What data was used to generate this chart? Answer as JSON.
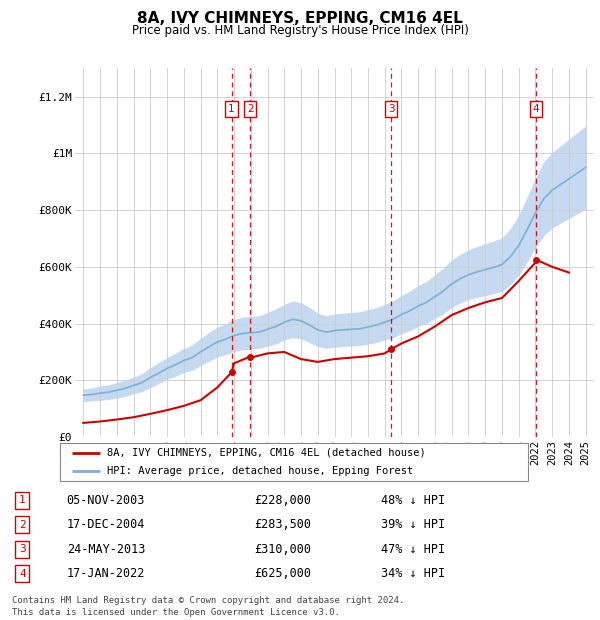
{
  "title": "8A, IVY CHIMNEYS, EPPING, CM16 4EL",
  "subtitle": "Price paid vs. HM Land Registry's House Price Index (HPI)",
  "legend_line1": "8A, IVY CHIMNEYS, EPPING, CM16 4EL (detached house)",
  "legend_line2": "HPI: Average price, detached house, Epping Forest",
  "footer1": "Contains HM Land Registry data © Crown copyright and database right 2024.",
  "footer2": "This data is licensed under the Open Government Licence v3.0.",
  "ylabel_ticks": [
    "£0",
    "£200K",
    "£400K",
    "£600K",
    "£800K",
    "£1M",
    "£1.2M"
  ],
  "ytick_values": [
    0,
    200000,
    400000,
    600000,
    800000,
    1000000,
    1200000
  ],
  "ylim": [
    0,
    1300000
  ],
  "xlim_start": 1994.5,
  "xlim_end": 2025.5,
  "hpi_color": "#c5d9f0",
  "hpi_line_color": "#7eafd4",
  "price_line_color": "#cc0000",
  "vline_color": "#cc0000",
  "transactions": [
    {
      "num": 1,
      "date": "05-NOV-2003",
      "year": 2003.85,
      "price": 228000,
      "label": "£228,000",
      "pct": "48% ↓ HPI"
    },
    {
      "num": 2,
      "date": "17-DEC-2004",
      "year": 2004.96,
      "price": 283500,
      "label": "£283,500",
      "pct": "39% ↓ HPI"
    },
    {
      "num": 3,
      "date": "24-MAY-2013",
      "year": 2013.39,
      "price": 310000,
      "label": "£310,000",
      "pct": "47% ↓ HPI"
    },
    {
      "num": 4,
      "date": "17-JAN-2022",
      "year": 2022.05,
      "price": 625000,
      "label": "£625,000",
      "pct": "34% ↓ HPI"
    }
  ],
  "hpi_years": [
    1995,
    1995.5,
    1996,
    1996.5,
    1997,
    1997.5,
    1998,
    1998.5,
    1999,
    1999.5,
    2000,
    2000.5,
    2001,
    2001.5,
    2002,
    2002.5,
    2003,
    2003.5,
    2004,
    2004.5,
    2005,
    2005.5,
    2006,
    2006.5,
    2007,
    2007.5,
    2008,
    2008.5,
    2009,
    2009.5,
    2010,
    2010.5,
    2011,
    2011.5,
    2012,
    2012.5,
    2013,
    2013.5,
    2014,
    2014.5,
    2015,
    2015.5,
    2016,
    2016.5,
    2017,
    2017.5,
    2018,
    2018.5,
    2019,
    2019.5,
    2020,
    2020.5,
    2021,
    2021.5,
    2022,
    2022.5,
    2023,
    2023.5,
    2024,
    2024.5,
    2025
  ],
  "hpi_values": [
    148000,
    150000,
    155000,
    158000,
    165000,
    172000,
    182000,
    192000,
    210000,
    225000,
    242000,
    255000,
    270000,
    280000,
    300000,
    318000,
    335000,
    345000,
    358000,
    365000,
    368000,
    370000,
    380000,
    390000,
    405000,
    415000,
    410000,
    395000,
    378000,
    370000,
    375000,
    378000,
    380000,
    382000,
    388000,
    395000,
    405000,
    415000,
    432000,
    445000,
    462000,
    475000,
    495000,
    515000,
    540000,
    558000,
    572000,
    582000,
    590000,
    598000,
    608000,
    635000,
    675000,
    730000,
    790000,
    840000,
    870000,
    890000,
    910000,
    930000,
    950000
  ],
  "hpi_upper": [
    168000,
    170000,
    178000,
    181000,
    190000,
    198000,
    209000,
    221000,
    242000,
    259000,
    278000,
    293000,
    310000,
    322000,
    345000,
    366000,
    385000,
    397000,
    412000,
    420000,
    423000,
    425000,
    437000,
    449000,
    465000,
    477000,
    471000,
    454000,
    434000,
    425000,
    431000,
    434000,
    437000,
    439000,
    446000,
    454000,
    465000,
    477000,
    497000,
    512000,
    531000,
    546000,
    569000,
    592000,
    621000,
    641000,
    657000,
    669000,
    679000,
    688000,
    699000,
    730000,
    776000,
    839000,
    908000,
    966000,
    1000000,
    1023000,
    1047000,
    1070000,
    1093000
  ],
  "hpi_lower": [
    128000,
    130000,
    132000,
    135000,
    140000,
    146000,
    155000,
    163000,
    178000,
    191000,
    206000,
    217000,
    230000,
    238000,
    255000,
    270000,
    285000,
    293000,
    304000,
    310000,
    313000,
    315000,
    323000,
    331000,
    345000,
    353000,
    349000,
    336000,
    322000,
    315000,
    319000,
    322000,
    323000,
    325000,
    330000,
    336000,
    345000,
    353000,
    367000,
    378000,
    393000,
    404000,
    421000,
    438000,
    459000,
    475000,
    487000,
    495000,
    501000,
    508000,
    517000,
    540000,
    574000,
    621000,
    672000,
    714000,
    740000,
    757000,
    773000,
    790000,
    807000
  ],
  "price_years": [
    1995,
    1996,
    1997,
    1998,
    1999,
    2000,
    2001,
    2002,
    2003,
    2003.85,
    2004,
    2004.96,
    2005,
    2006,
    2007,
    2008,
    2009,
    2010,
    2011,
    2012,
    2013,
    2013.39,
    2014,
    2015,
    2016,
    2017,
    2018,
    2019,
    2020,
    2021,
    2022,
    2022.05,
    2023,
    2024
  ],
  "price_values": [
    50000,
    55000,
    62000,
    70000,
    82000,
    95000,
    110000,
    130000,
    175000,
    228000,
    260000,
    283500,
    280000,
    295000,
    300000,
    275000,
    265000,
    275000,
    280000,
    285000,
    295000,
    310000,
    330000,
    355000,
    390000,
    430000,
    455000,
    475000,
    490000,
    550000,
    615000,
    625000,
    600000,
    580000
  ],
  "xtick_years": [
    1995,
    1996,
    1997,
    1998,
    1999,
    2000,
    2001,
    2002,
    2003,
    2004,
    2005,
    2006,
    2007,
    2008,
    2009,
    2010,
    2011,
    2012,
    2013,
    2014,
    2015,
    2016,
    2017,
    2018,
    2019,
    2020,
    2021,
    2022,
    2023,
    2024,
    2025
  ]
}
